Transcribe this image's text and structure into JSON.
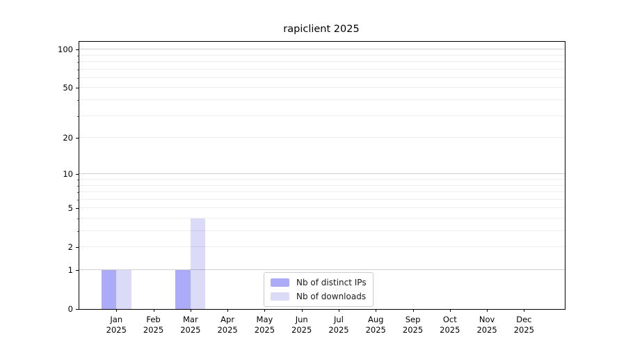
{
  "chart_data": {
    "type": "bar",
    "title": "rapiclient 2025",
    "categories": [
      "Jan 2025",
      "Feb 2025",
      "Mar 2025",
      "Apr 2025",
      "May 2025",
      "Jun 2025",
      "Jul 2025",
      "Aug 2025",
      "Sep 2025",
      "Oct 2025",
      "Nov 2025",
      "Dec 2025"
    ],
    "series": [
      {
        "name": "Nb of distinct IPs",
        "color": "#ababf8",
        "values": [
          1,
          0,
          1,
          0,
          0,
          0,
          0,
          0,
          0,
          0,
          0,
          0
        ]
      },
      {
        "name": "Nb of downloads",
        "color": "#dbdbf8",
        "values": [
          1,
          0,
          4,
          0,
          0,
          0,
          0,
          0,
          0,
          0,
          0,
          0
        ]
      }
    ],
    "xlabel": "",
    "ylabel": "",
    "yscale": "log1p",
    "ylim": [
      0,
      115
    ],
    "yticks": [
      0,
      1,
      2,
      5,
      10,
      20,
      50,
      100
    ],
    "minor_gridline_values": [
      3,
      4,
      6,
      7,
      8,
      9,
      30,
      40,
      60,
      70,
      80,
      90
    ],
    "major_gridline_values": [
      1,
      10,
      100
    ],
    "grid": "horizontal",
    "legend_position": "lower center"
  },
  "colors": {
    "background": "#ffffff",
    "spine": "#000000",
    "text": "#000000",
    "legend_border": "#cccccc",
    "series_distinct_ips": "#ababf8",
    "series_downloads": "#dbdbf8"
  }
}
